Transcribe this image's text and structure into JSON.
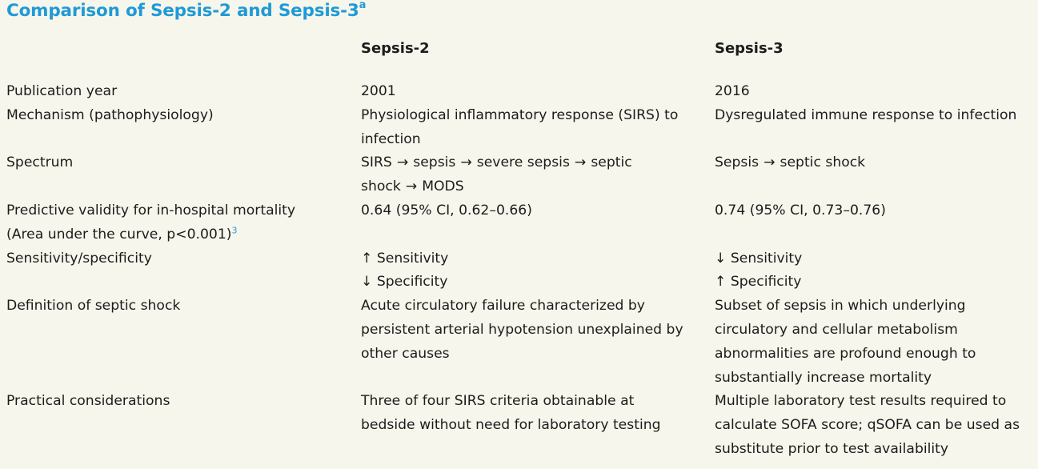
{
  "title": {
    "text": "Comparison of Sepsis-2 and Sepsis-3",
    "footnote_mark": "a"
  },
  "columns": {
    "sepsis2": "Sepsis-2",
    "sepsis3": "Sepsis-3"
  },
  "rows": {
    "publication_year": {
      "label": "Publication year",
      "sepsis2": "2001",
      "sepsis3": "2016"
    },
    "mechanism": {
      "label": "Mechanism (pathophysiology)",
      "sepsis2_line1": "Physiological inflammatory response (SIRS) to",
      "sepsis2_line2": "infection",
      "sepsis3": "Dysregulated immune response to infection"
    },
    "spectrum": {
      "label": "Spectrum",
      "arrow": "→",
      "sepsis2_terms": [
        "SIRS",
        "sepsis",
        "severe sepsis",
        "septic",
        "shock",
        "MODS"
      ],
      "sepsis3_terms": [
        "Sepsis",
        "septic shock"
      ]
    },
    "predictive_validity": {
      "label_line1": "Predictive validity for in-hospital mortality",
      "label_line2": "(Area under the curve, p<0.001)",
      "label_ref": "3",
      "sepsis2": "0.64 (95% CI, 0.62–0.66)",
      "sepsis3": "0.74 (95% CI, 0.73–0.76)"
    },
    "sensitivity_specificity": {
      "label": "Sensitivity/specificity",
      "sepsis2_line1": "↑ Sensitivity",
      "sepsis2_line2": "↓ Specificity",
      "sepsis3_line1": "↓ Sensitivity",
      "sepsis3_line2": "↑ Specificity"
    },
    "septic_shock_definition": {
      "label": "Definition of septic shock",
      "sepsis2_lines": [
        "Acute circulatory failure characterized by",
        "persistent arterial hypotension unexplained by",
        "other causes"
      ],
      "sepsis3_lines": [
        "Subset of sepsis in which underlying",
        "circulatory and cellular metabolism",
        "abnormalities are profound enough to",
        "substantially increase mortality"
      ]
    },
    "practical_considerations": {
      "label": "Practical considerations",
      "sepsis2_lines": [
        "Three of four SIRS criteria obtainable at",
        "bedside without need for laboratory testing"
      ],
      "sepsis3_lines": [
        "Multiple laboratory test results required to",
        "calculate SOFA score; qSOFA can be used as",
        "substitute prior to test availability"
      ]
    }
  }
}
